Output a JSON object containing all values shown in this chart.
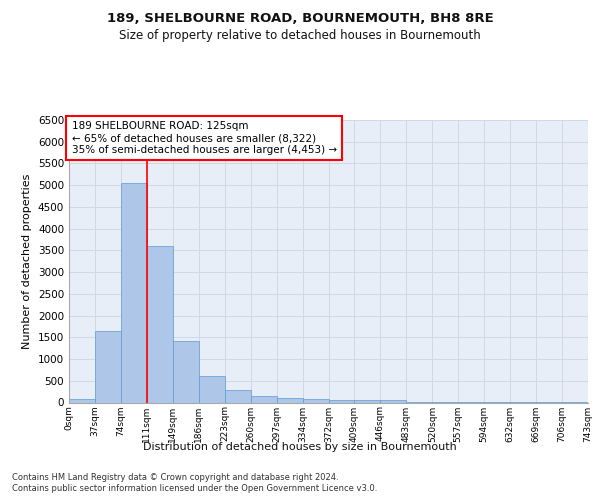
{
  "title1": "189, SHELBOURNE ROAD, BOURNEMOUTH, BH8 8RE",
  "title2": "Size of property relative to detached houses in Bournemouth",
  "xlabel": "Distribution of detached houses by size in Bournemouth",
  "ylabel": "Number of detached properties",
  "bar_values": [
    80,
    1650,
    5050,
    3600,
    1420,
    620,
    290,
    140,
    100,
    70,
    50,
    50,
    50,
    20,
    10,
    5,
    5,
    5,
    3,
    2
  ],
  "bar_labels": [
    "0sqm",
    "37sqm",
    "74sqm",
    "111sqm",
    "149sqm",
    "186sqm",
    "223sqm",
    "260sqm",
    "297sqm",
    "334sqm",
    "372sqm",
    "409sqm",
    "446sqm",
    "483sqm",
    "520sqm",
    "557sqm",
    "594sqm",
    "632sqm",
    "669sqm",
    "706sqm",
    "743sqm"
  ],
  "bar_color": "#aec6e8",
  "bar_edge_color": "#5b9bd5",
  "annotation_text": "189 SHELBOURNE ROAD: 125sqm\n← 65% of detached houses are smaller (8,322)\n35% of semi-detached houses are larger (4,453) →",
  "annotation_box_color": "#ffffff",
  "annotation_edge_color": "#ff0000",
  "vline_color": "#ff0000",
  "grid_color": "#d0d8e8",
  "background_color": "#e8eef8",
  "footer1": "Contains HM Land Registry data © Crown copyright and database right 2024.",
  "footer2": "Contains public sector information licensed under the Open Government Licence v3.0.",
  "ylim": [
    0,
    6500
  ],
  "yticks": [
    0,
    500,
    1000,
    1500,
    2000,
    2500,
    3000,
    3500,
    4000,
    4500,
    5000,
    5500,
    6000,
    6500
  ],
  "vline_x": 2.5
}
